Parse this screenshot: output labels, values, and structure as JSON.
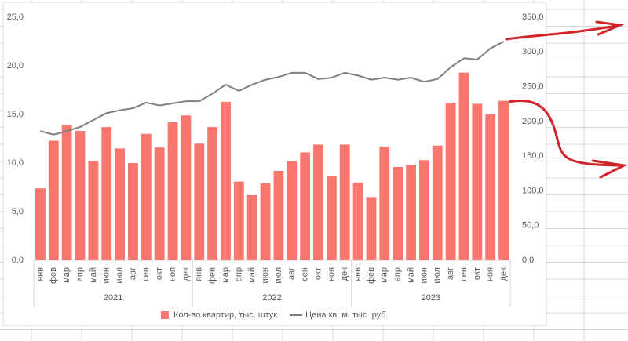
{
  "chart_data": {
    "type": "combo",
    "categories": [
      "янв",
      "фев",
      "мар",
      "апр",
      "май",
      "июн",
      "июл",
      "авг",
      "сен",
      "окт",
      "ноя",
      "дек",
      "янв",
      "фев",
      "мар",
      "апр",
      "май",
      "июн",
      "июл",
      "авг",
      "сен",
      "окт",
      "ноя",
      "дек",
      "янв",
      "фев",
      "мар",
      "апр",
      "май",
      "июн",
      "июл",
      "авг",
      "сен",
      "окт",
      "ноя",
      "дек"
    ],
    "category_groups": [
      "2021",
      "2022",
      "2023"
    ],
    "series": [
      {
        "name": "Кол-во квартир, тыс. штук",
        "type": "bar",
        "color": "#f8766d",
        "values": [
          7.4,
          12.3,
          13.9,
          13.3,
          10.2,
          13.7,
          11.5,
          10.0,
          13.0,
          11.6,
          14.2,
          14.9,
          12.0,
          13.7,
          16.3,
          8.1,
          6.7,
          7.9,
          9.2,
          10.2,
          11.1,
          11.9,
          8.7,
          11.9,
          8.0,
          6.5,
          11.7,
          9.6,
          9.8,
          10.3,
          11.8,
          16.2,
          19.3,
          16.1,
          15.0,
          16.4
        ]
      },
      {
        "name": "Цена кв. м, тыс. руб.",
        "type": "line",
        "axis": "y2",
        "color": "#7f7f7f",
        "values": [
          186,
          181,
          186,
          192,
          202,
          212,
          216,
          219,
          227,
          223,
          226,
          229,
          229,
          240,
          253,
          244,
          253,
          260,
          264,
          270,
          270,
          261,
          263,
          270,
          266,
          260,
          263,
          260,
          263,
          257,
          261,
          278,
          291,
          289,
          305,
          315
        ]
      }
    ],
    "ylim": [
      0,
      25
    ],
    "yticks": [
      {
        "value": 0,
        "label": "0,0"
      },
      {
        "value": 5,
        "label": "5,0"
      },
      {
        "value": 10,
        "label": "10,0"
      },
      {
        "value": 15,
        "label": "15,0"
      },
      {
        "value": 20,
        "label": "20,0"
      },
      {
        "value": 25,
        "label": "25,0"
      }
    ],
    "y2lim": [
      0,
      350
    ],
    "y2ticks": [
      {
        "value": 0,
        "label": "0,0"
      },
      {
        "value": 50,
        "label": "50,0"
      },
      {
        "value": 100,
        "label": "100,0"
      },
      {
        "value": 150,
        "label": "150,0"
      },
      {
        "value": 200,
        "label": "200,0"
      },
      {
        "value": 250,
        "label": "250,0"
      },
      {
        "value": 300,
        "label": "300,0"
      },
      {
        "value": 350,
        "label": "350,0"
      }
    ],
    "legend": "bottom"
  }
}
